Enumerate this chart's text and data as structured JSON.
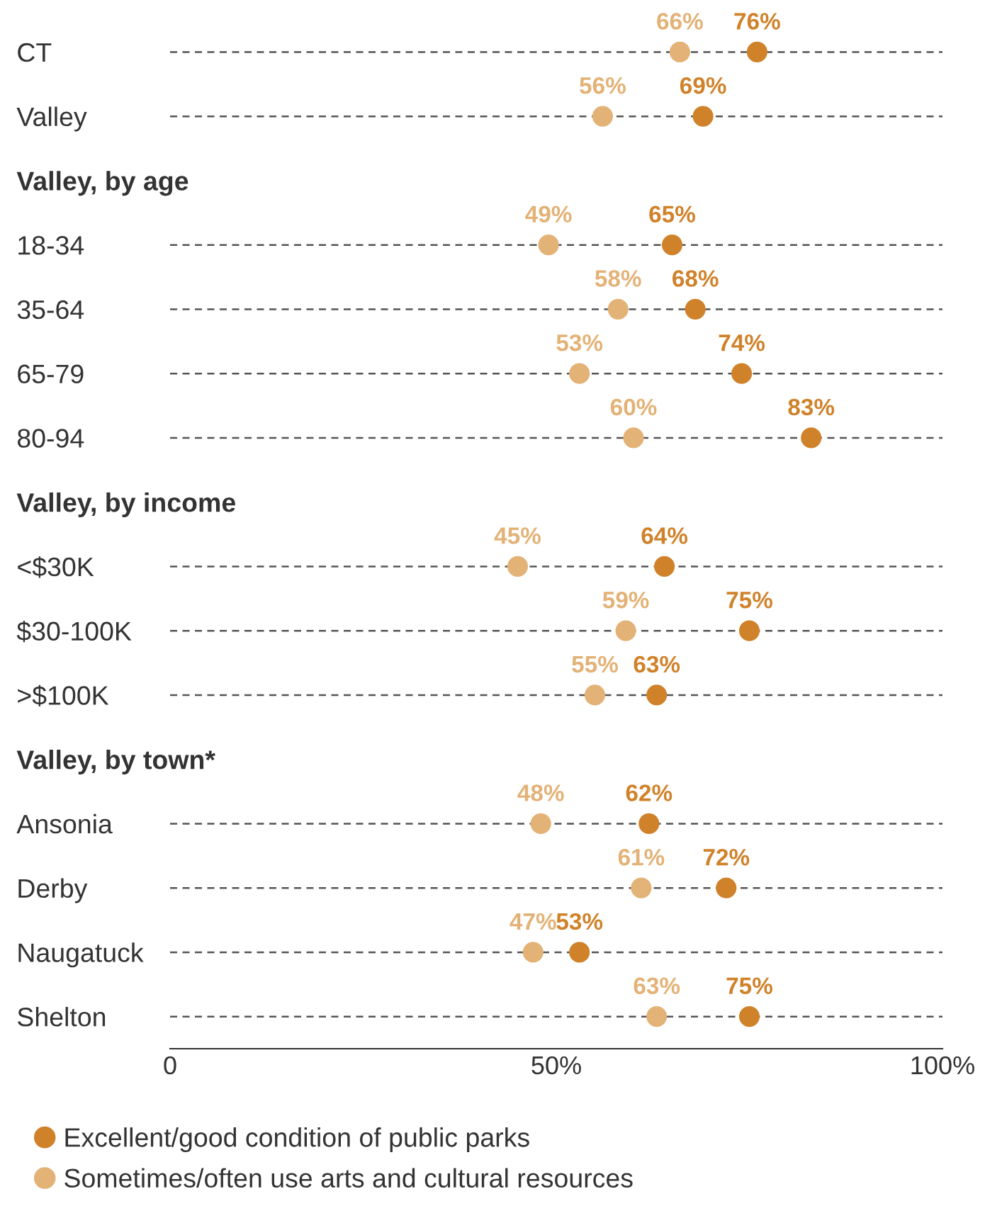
{
  "chart_data": {
    "type": "scatter",
    "orientation": "horizontal",
    "categories": [
      "CT",
      "Valley",
      "Valley, by age",
      "18-34",
      "35-64",
      "65-79",
      "80-94",
      "Valley, by income",
      "<$30K",
      "$30-100K",
      ">$100K",
      "Valley, by town*",
      "Ansonia",
      "Derby",
      "Naugatuck",
      "Shelton"
    ],
    "series": [
      {
        "name": "Excellent/good condition of public parks",
        "color": "#d0822a",
        "values": [
          76,
          69,
          null,
          65,
          68,
          74,
          83,
          null,
          64,
          75,
          63,
          null,
          62,
          72,
          53,
          75
        ],
        "value_labels": [
          "76%",
          "69%",
          null,
          "65%",
          "68%",
          "74%",
          "83%",
          null,
          "64%",
          "75%",
          "63%",
          null,
          "62%",
          "72%",
          "53%",
          "75%"
        ]
      },
      {
        "name": "Sometimes/often use arts and cultural resources",
        "color": "#e3b276",
        "values": [
          66,
          56,
          null,
          49,
          58,
          53,
          60,
          null,
          45,
          59,
          55,
          null,
          48,
          61,
          47,
          63
        ],
        "value_labels": [
          "66%",
          "56%",
          null,
          "49%",
          "58%",
          "53%",
          "60%",
          null,
          "45%",
          "59%",
          "55%",
          null,
          "48%",
          "61%",
          "47%",
          "63%"
        ]
      }
    ],
    "xlim": [
      0,
      100
    ],
    "xticks": [
      0,
      {
        "value": 50,
        "label": "50%"
      },
      {
        "value": 100,
        "label": "100%"
      }
    ],
    "grid": "y",
    "legend": "bottom left",
    "marker": "circle"
  }
}
